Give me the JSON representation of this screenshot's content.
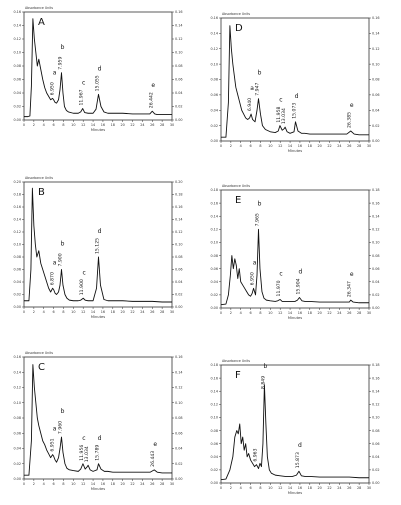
{
  "chart_data": [
    {
      "type": "line",
      "panel_label": "A",
      "corner_label": "Absorbance Units",
      "xlabel": "Minutes",
      "xlim": [
        0,
        30
      ],
      "ylim": [
        0,
        0.16
      ],
      "x_ticks": [
        "0",
        "2",
        "4",
        "6",
        "8",
        "10",
        "12",
        "14",
        "16",
        "18",
        "20",
        "22",
        "24",
        "26",
        "28",
        "30"
      ],
      "y_ticks": [
        "0.00",
        "0.02",
        "0.04",
        "0.06",
        "0.08",
        "0.10",
        "0.12",
        "0.14",
        "0.16"
      ],
      "x": [
        0,
        0.8,
        1.2,
        1.5,
        1.8,
        2.1,
        2.4,
        2.7,
        3.0,
        3.4,
        3.8,
        4.2,
        4.6,
        5.0,
        5.4,
        5.8,
        6.0,
        6.3,
        6.6,
        7.0,
        7.3,
        7.6,
        7.9,
        8.2,
        8.6,
        9,
        10,
        11,
        11.5,
        11.9,
        12.3,
        13,
        14,
        14.6,
        15.1,
        15.6,
        16.2,
        17,
        18,
        20,
        22,
        24,
        25.5,
        26,
        26.5,
        27,
        28,
        30
      ],
      "y": [
        0.005,
        0.005,
        0.006,
        0.05,
        0.15,
        0.12,
        0.1,
        0.08,
        0.09,
        0.075,
        0.06,
        0.048,
        0.04,
        0.035,
        0.03,
        0.032,
        0.03,
        0.026,
        0.025,
        0.03,
        0.045,
        0.07,
        0.04,
        0.02,
        0.014,
        0.012,
        0.01,
        0.01,
        0.012,
        0.017,
        0.011,
        0.01,
        0.01,
        0.016,
        0.038,
        0.02,
        0.012,
        0.01,
        0.01,
        0.01,
        0.009,
        0.009,
        0.009,
        0.013,
        0.009,
        0.008,
        0.008,
        0.008
      ],
      "annotations": [
        {
          "letter": "a",
          "value": "6.950",
          "x": 6.0
        },
        {
          "letter": "b",
          "value": "7.959",
          "x": 7.6
        },
        {
          "letter": "c",
          "value": "11.967",
          "x": 11.9
        },
        {
          "letter": "d",
          "value": "15.055",
          "x": 15.1
        },
        {
          "letter": "e",
          "value": "26.442",
          "x": 26.0
        }
      ]
    },
    {
      "type": "line",
      "panel_label": "D",
      "corner_label": "Absorbance Units",
      "xlabel": "Minutes",
      "xlim": [
        0,
        30
      ],
      "ylim": [
        0,
        0.16
      ],
      "x_ticks": [
        "0",
        "2",
        "4",
        "6",
        "8",
        "10",
        "12",
        "14",
        "16",
        "18",
        "20",
        "22",
        "24",
        "26",
        "28",
        "30"
      ],
      "y_ticks": [
        "0.00",
        "0.02",
        "0.04",
        "0.06",
        "0.08",
        "0.10",
        "0.12",
        "0.14",
        "0.16"
      ],
      "x": [
        0,
        1,
        1.5,
        1.8,
        2.1,
        2.4,
        2.7,
        3.0,
        3.4,
        3.8,
        4.2,
        4.6,
        5.0,
        5.4,
        5.8,
        6.1,
        6.4,
        6.9,
        7.3,
        7.6,
        8.0,
        8.4,
        9,
        10,
        11,
        11.6,
        11.95,
        12.4,
        12.8,
        13.0,
        13.4,
        14,
        14.8,
        15.1,
        15.6,
        16.3,
        17,
        18,
        20,
        22,
        24,
        25.5,
        26.3,
        27,
        28,
        30
      ],
      "y": [
        0.005,
        0.005,
        0.05,
        0.15,
        0.12,
        0.1,
        0.085,
        0.07,
        0.06,
        0.05,
        0.04,
        0.035,
        0.03,
        0.028,
        0.03,
        0.035,
        0.028,
        0.025,
        0.04,
        0.055,
        0.035,
        0.02,
        0.015,
        0.012,
        0.011,
        0.013,
        0.02,
        0.014,
        0.016,
        0.018,
        0.012,
        0.01,
        0.012,
        0.025,
        0.013,
        0.01,
        0.01,
        0.009,
        0.009,
        0.009,
        0.009,
        0.009,
        0.013,
        0.009,
        0.008,
        0.008
      ],
      "annotations": [
        {
          "letter": "a",
          "value": "6.940",
          "x": 6.1
        },
        {
          "letter": "b",
          "value": "7.947",
          "x": 7.6
        },
        {
          "letter": "c",
          "value": "11.958",
          "x": 11.95
        },
        {
          "letter": "",
          "value": "13.034",
          "x": 13.0
        },
        {
          "letter": "d",
          "value": "15.073",
          "x": 15.1
        },
        {
          "letter": "e",
          "value": "26.385",
          "x": 26.3
        }
      ]
    },
    {
      "type": "line",
      "panel_label": "B",
      "corner_label": "Absorbance Units",
      "xlabel": "Minutes",
      "xlim": [
        0,
        30
      ],
      "ylim": [
        0,
        0.2
      ],
      "x_ticks": [
        "0",
        "2",
        "4",
        "6",
        "8",
        "10",
        "12",
        "14",
        "16",
        "18",
        "20",
        "22",
        "24",
        "26",
        "28",
        "30"
      ],
      "y_ticks": [
        "0.00",
        "0.02",
        "0.04",
        "0.06",
        "0.08",
        "0.10",
        "0.12",
        "0.14",
        "0.16",
        "0.18",
        "0.20"
      ],
      "x": [
        0,
        1,
        1.4,
        1.7,
        2.0,
        2.3,
        2.6,
        3.0,
        3.4,
        3.8,
        4.2,
        4.6,
        5.0,
        5.4,
        5.8,
        6.0,
        6.3,
        6.6,
        7.0,
        7.3,
        7.6,
        7.9,
        8.3,
        8.7,
        9.2,
        10,
        11,
        11.5,
        12,
        12.4,
        13,
        14,
        14.7,
        15.1,
        15.5,
        16.2,
        17,
        18,
        20,
        22,
        24,
        26,
        28,
        30
      ],
      "y": [
        0.01,
        0.01,
        0.06,
        0.19,
        0.13,
        0.1,
        0.08,
        0.09,
        0.07,
        0.06,
        0.05,
        0.04,
        0.03,
        0.024,
        0.03,
        0.028,
        0.022,
        0.02,
        0.024,
        0.035,
        0.06,
        0.035,
        0.02,
        0.014,
        0.011,
        0.01,
        0.01,
        0.011,
        0.014,
        0.011,
        0.01,
        0.01,
        0.03,
        0.08,
        0.035,
        0.012,
        0.01,
        0.01,
        0.01,
        0.009,
        0.009,
        0.009,
        0.008,
        0.008
      ],
      "annotations": [
        {
          "letter": "a",
          "value": "6.870",
          "x": 6.0
        },
        {
          "letter": "b",
          "value": "7.900",
          "x": 7.6
        },
        {
          "letter": "c",
          "value": "11.900",
          "x": 12.0
        },
        {
          "letter": "d",
          "value": "15.125",
          "x": 15.1
        }
      ]
    },
    {
      "type": "line",
      "panel_label": "E",
      "corner_label": "Absorbance Units",
      "xlabel": "Minutes",
      "xlim": [
        0,
        30
      ],
      "ylim": [
        0,
        0.18
      ],
      "x_ticks": [
        "0",
        "2",
        "4",
        "6",
        "8",
        "10",
        "12",
        "14",
        "16",
        "18",
        "20",
        "22",
        "24",
        "26",
        "28",
        "30"
      ],
      "y_ticks": [
        "0.00",
        "0.02",
        "0.04",
        "0.06",
        "0.08",
        "0.10",
        "0.12",
        "0.14",
        "0.16",
        "0.18"
      ],
      "x": [
        0,
        1,
        1.5,
        1.9,
        2.2,
        2.5,
        2.8,
        3.1,
        3.4,
        3.7,
        4.0,
        4.4,
        4.8,
        5.2,
        5.6,
        6.0,
        6.3,
        6.6,
        7.0,
        7.3,
        7.6,
        7.9,
        8.3,
        8.7,
        9.2,
        10,
        11,
        11.5,
        11.97,
        12.4,
        13,
        14,
        15,
        15.5,
        15.9,
        16.4,
        17,
        18,
        20,
        22,
        24,
        26,
        26.3,
        26.8,
        28,
        30
      ],
      "y": [
        0.005,
        0.006,
        0.02,
        0.05,
        0.08,
        0.06,
        0.075,
        0.065,
        0.045,
        0.06,
        0.04,
        0.035,
        0.03,
        0.025,
        0.02,
        0.018,
        0.022,
        0.03,
        0.02,
        0.05,
        0.12,
        0.06,
        0.025,
        0.015,
        0.012,
        0.011,
        0.01,
        0.011,
        0.013,
        0.01,
        0.01,
        0.01,
        0.01,
        0.012,
        0.016,
        0.011,
        0.01,
        0.01,
        0.009,
        0.009,
        0.009,
        0.009,
        0.012,
        0.009,
        0.008,
        0.008
      ],
      "annotations": [
        {
          "letter": "a",
          "value": "6.950",
          "x": 6.6
        },
        {
          "letter": "b",
          "value": "7.965",
          "x": 7.6
        },
        {
          "letter": "c",
          "value": "11.970",
          "x": 11.97
        },
        {
          "letter": "d",
          "value": "15.904",
          "x": 15.9
        },
        {
          "letter": "e",
          "value": "26.347",
          "x": 26.3
        }
      ]
    },
    {
      "type": "line",
      "panel_label": "C",
      "corner_label": "Absorbance Units",
      "xlabel": "Minutes",
      "xlim": [
        0,
        30
      ],
      "ylim": [
        0,
        0.16
      ],
      "x_ticks": [
        "0",
        "2",
        "4",
        "6",
        "8",
        "10",
        "12",
        "14",
        "16",
        "18",
        "20",
        "22",
        "24",
        "26",
        "28",
        "30"
      ],
      "y_ticks": [
        "0.00",
        "0.02",
        "0.04",
        "0.06",
        "0.08",
        "0.10",
        "0.12",
        "0.14",
        "0.16"
      ],
      "x": [
        0,
        1,
        1.5,
        1.8,
        2.1,
        2.4,
        2.7,
        3.0,
        3.4,
        3.8,
        4.2,
        4.6,
        5.0,
        5.4,
        5.8,
        6.0,
        6.3,
        6.6,
        7.0,
        7.3,
        7.6,
        7.9,
        8.3,
        8.7,
        9.2,
        10,
        11,
        11.5,
        11.95,
        12.4,
        12.8,
        13.0,
        13.4,
        14,
        14.8,
        15.1,
        15.6,
        16.3,
        17,
        18,
        20,
        22,
        24,
        25.6,
        26.4,
        27,
        28,
        30
      ],
      "y": [
        0.005,
        0.005,
        0.05,
        0.15,
        0.12,
        0.1,
        0.08,
        0.07,
        0.06,
        0.05,
        0.045,
        0.038,
        0.033,
        0.028,
        0.032,
        0.03,
        0.025,
        0.022,
        0.028,
        0.04,
        0.055,
        0.035,
        0.02,
        0.014,
        0.012,
        0.011,
        0.01,
        0.013,
        0.02,
        0.013,
        0.016,
        0.018,
        0.012,
        0.01,
        0.012,
        0.02,
        0.013,
        0.01,
        0.01,
        0.009,
        0.009,
        0.009,
        0.009,
        0.009,
        0.012,
        0.009,
        0.008,
        0.008
      ],
      "annotations": [
        {
          "letter": "a",
          "value": "6.951",
          "x": 6.0
        },
        {
          "letter": "b",
          "value": "7.960",
          "x": 7.6
        },
        {
          "letter": "c",
          "value": "11.956",
          "x": 11.95
        },
        {
          "letter": "",
          "value": "13.034",
          "x": 13.0
        },
        {
          "letter": "d",
          "value": "15.789",
          "x": 15.1
        },
        {
          "letter": "e",
          "value": "26.443",
          "x": 26.4
        }
      ]
    },
    {
      "type": "line",
      "panel_label": "F",
      "corner_label": "Absorbance Units",
      "xlabel": "Minutes",
      "xlim": [
        0,
        30
      ],
      "ylim": [
        0,
        0.18
      ],
      "x_ticks": [
        "0",
        "2",
        "4",
        "6",
        "8",
        "10",
        "12",
        "14",
        "16",
        "18",
        "20",
        "22",
        "24",
        "26",
        "28",
        "30"
      ],
      "y_ticks": [
        "0.00",
        "0.02",
        "0.04",
        "0.06",
        "0.08",
        "0.10",
        "0.12",
        "0.14",
        "0.16",
        "0.18"
      ],
      "x": [
        0,
        1,
        1.8,
        2.4,
        2.8,
        3.2,
        3.5,
        3.8,
        4.1,
        4.4,
        4.7,
        5.0,
        5.3,
        5.6,
        6.0,
        6.4,
        6.8,
        7.2,
        7.6,
        7.9,
        8.2,
        8.5,
        8.8,
        9.1,
        9.4,
        9.8,
        10.2,
        11,
        12,
        13,
        14.5,
        15.3,
        15.8,
        16.3,
        17,
        18,
        20,
        22,
        24,
        26,
        28,
        30
      ],
      "y": [
        0.005,
        0.006,
        0.02,
        0.04,
        0.07,
        0.08,
        0.075,
        0.09,
        0.06,
        0.07,
        0.05,
        0.06,
        0.04,
        0.045,
        0.035,
        0.03,
        0.025,
        0.028,
        0.022,
        0.03,
        0.025,
        0.06,
        0.15,
        0.09,
        0.04,
        0.02,
        0.015,
        0.012,
        0.011,
        0.01,
        0.01,
        0.012,
        0.018,
        0.011,
        0.01,
        0.01,
        0.009,
        0.009,
        0.009,
        0.009,
        0.008,
        0.008
      ],
      "annotations": [
        {
          "letter": "",
          "value": "6.963",
          "x": 7.2
        },
        {
          "letter": "b",
          "value": "8.849",
          "x": 8.8
        },
        {
          "letter": "d",
          "value": "15.873",
          "x": 15.8
        }
      ]
    }
  ]
}
